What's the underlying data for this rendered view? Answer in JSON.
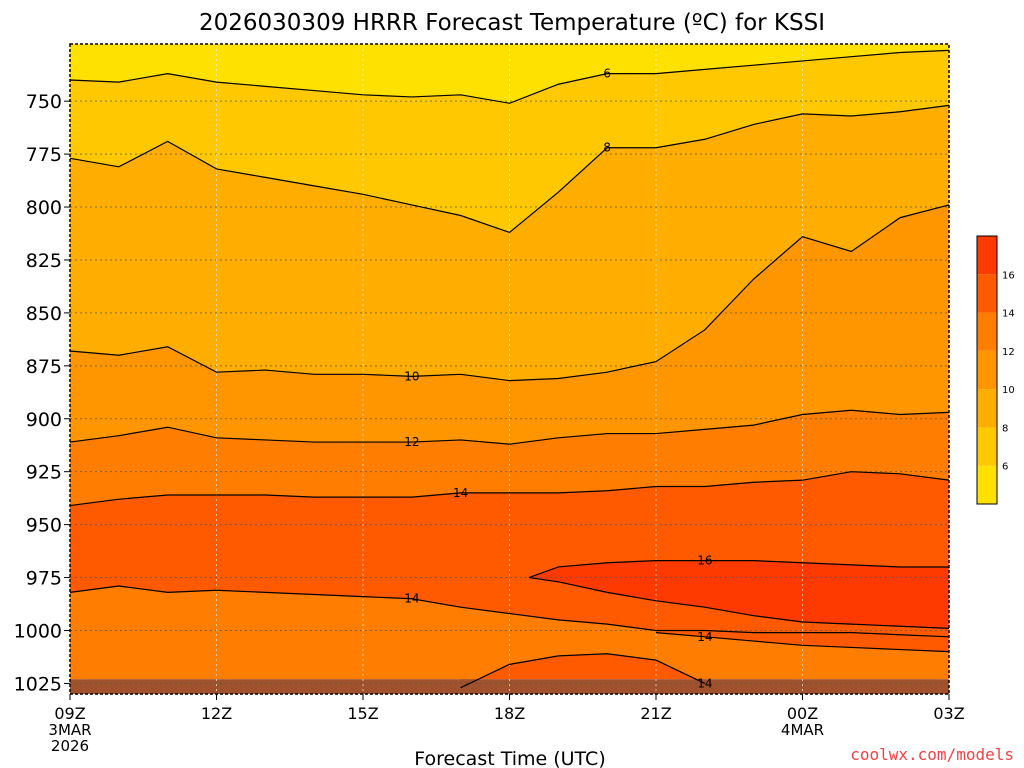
{
  "chart_data": {
    "type": "heatmap",
    "title": "2026030309 HRRR Forecast Temperature (ºC) for KSSI",
    "xlabel": "Forecast Time (UTC)",
    "ylabel": "",
    "watermark": "coolwx.com/models",
    "x_ticks": [
      {
        "label": "09Z",
        "hour": 0,
        "sub": [
          "3MAR",
          "2026"
        ]
      },
      {
        "label": "12Z",
        "hour": 3,
        "sub": []
      },
      {
        "label": "15Z",
        "hour": 6,
        "sub": []
      },
      {
        "label": "18Z",
        "hour": 9,
        "sub": []
      },
      {
        "label": "21Z",
        "hour": 12,
        "sub": []
      },
      {
        "label": "00Z",
        "hour": 15,
        "sub": [
          "4MAR"
        ]
      },
      {
        "label": "03Z",
        "hour": 18,
        "sub": []
      }
    ],
    "y_ticks": [
      750,
      775,
      800,
      825,
      850,
      875,
      900,
      925,
      950,
      975,
      1000,
      1025
    ],
    "xlim": [
      0,
      18
    ],
    "ylim_hPa": [
      723,
      1030
    ],
    "ground_hPa": 1023,
    "colorbar": {
      "labels": [
        "6",
        "8",
        "10",
        "12",
        "14",
        "16"
      ],
      "bands": [
        {
          "range": [
            4,
            6
          ],
          "color": "#ffe100"
        },
        {
          "range": [
            6,
            8
          ],
          "color": "#ffc800"
        },
        {
          "range": [
            8,
            10
          ],
          "color": "#ffae00"
        },
        {
          "range": [
            10,
            12
          ],
          "color": "#ff9600"
        },
        {
          "range": [
            12,
            14
          ],
          "color": "#ff7d00"
        },
        {
          "range": [
            14,
            16
          ],
          "color": "#ff5a00"
        },
        {
          "range": [
            16,
            18
          ],
          "color": "#ff3a00"
        }
      ]
    },
    "ground_color": "#a0522d",
    "hours": [
      0,
      1,
      2,
      3,
      4,
      5,
      6,
      7,
      8,
      9,
      10,
      11,
      12,
      13,
      14,
      15,
      16,
      17,
      18
    ],
    "isotherms": [
      {
        "level": "6",
        "label_at": 11,
        "p": [
          740,
          741,
          737,
          741,
          743,
          745,
          747,
          748,
          747,
          751,
          742,
          737,
          737,
          735,
          733,
          731,
          729,
          727,
          726
        ]
      },
      {
        "level": "8",
        "label_at": 11,
        "p": [
          777,
          781,
          769,
          782,
          786,
          790,
          794,
          799,
          804,
          812,
          793,
          772,
          772,
          768,
          761,
          756,
          757,
          755,
          752
        ]
      },
      {
        "level": "10",
        "label_at": 7,
        "p": [
          868,
          870,
          866,
          878,
          877,
          879,
          879,
          880,
          879,
          882,
          881,
          878,
          873,
          858,
          834,
          814,
          821,
          805,
          799
        ]
      },
      {
        "level": "12",
        "label_at": 7,
        "p": [
          911,
          908,
          904,
          909,
          910,
          911,
          911,
          911,
          910,
          912,
          909,
          907,
          907,
          905,
          903,
          898,
          896,
          898,
          897
        ]
      },
      {
        "level": "14",
        "label_at": 8,
        "p": [
          941,
          938,
          936,
          936,
          936,
          937,
          937,
          937,
          935,
          935,
          935,
          934,
          932,
          932,
          930,
          929,
          925,
          926,
          929
        ]
      },
      {
        "level": "14",
        "label_at": 7,
        "p": [
          982,
          979,
          982,
          981,
          982,
          983,
          984,
          985,
          989,
          992,
          995,
          997,
          1000,
          1000,
          1001,
          1001,
          1001,
          1002,
          1003
        ]
      },
      {
        "level": "16",
        "label_at": 13,
        "p": [
          null,
          null,
          null,
          null,
          null,
          null,
          null,
          null,
          null,
          null,
          970,
          968,
          967,
          967,
          967,
          968,
          969,
          970,
          970
        ]
      },
      {
        "level": "16",
        "label_at": 13,
        "p": [
          null,
          null,
          null,
          null,
          null,
          null,
          null,
          null,
          null,
          null,
          977,
          982,
          986,
          989,
          993,
          996,
          997,
          998,
          999
        ]
      },
      {
        "level": "14",
        "label_at": 13,
        "p": [
          null,
          null,
          null,
          null,
          null,
          null,
          null,
          null,
          1027,
          1016,
          1012,
          1011,
          1014,
          1025,
          null,
          null,
          null,
          null,
          null
        ]
      },
      {
        "level": "14",
        "label_at": 13,
        "p": [
          null,
          null,
          null,
          null,
          null,
          null,
          null,
          null,
          null,
          null,
          null,
          null,
          1001,
          1003,
          1005,
          1007,
          1008,
          1009,
          1010
        ]
      }
    ]
  }
}
